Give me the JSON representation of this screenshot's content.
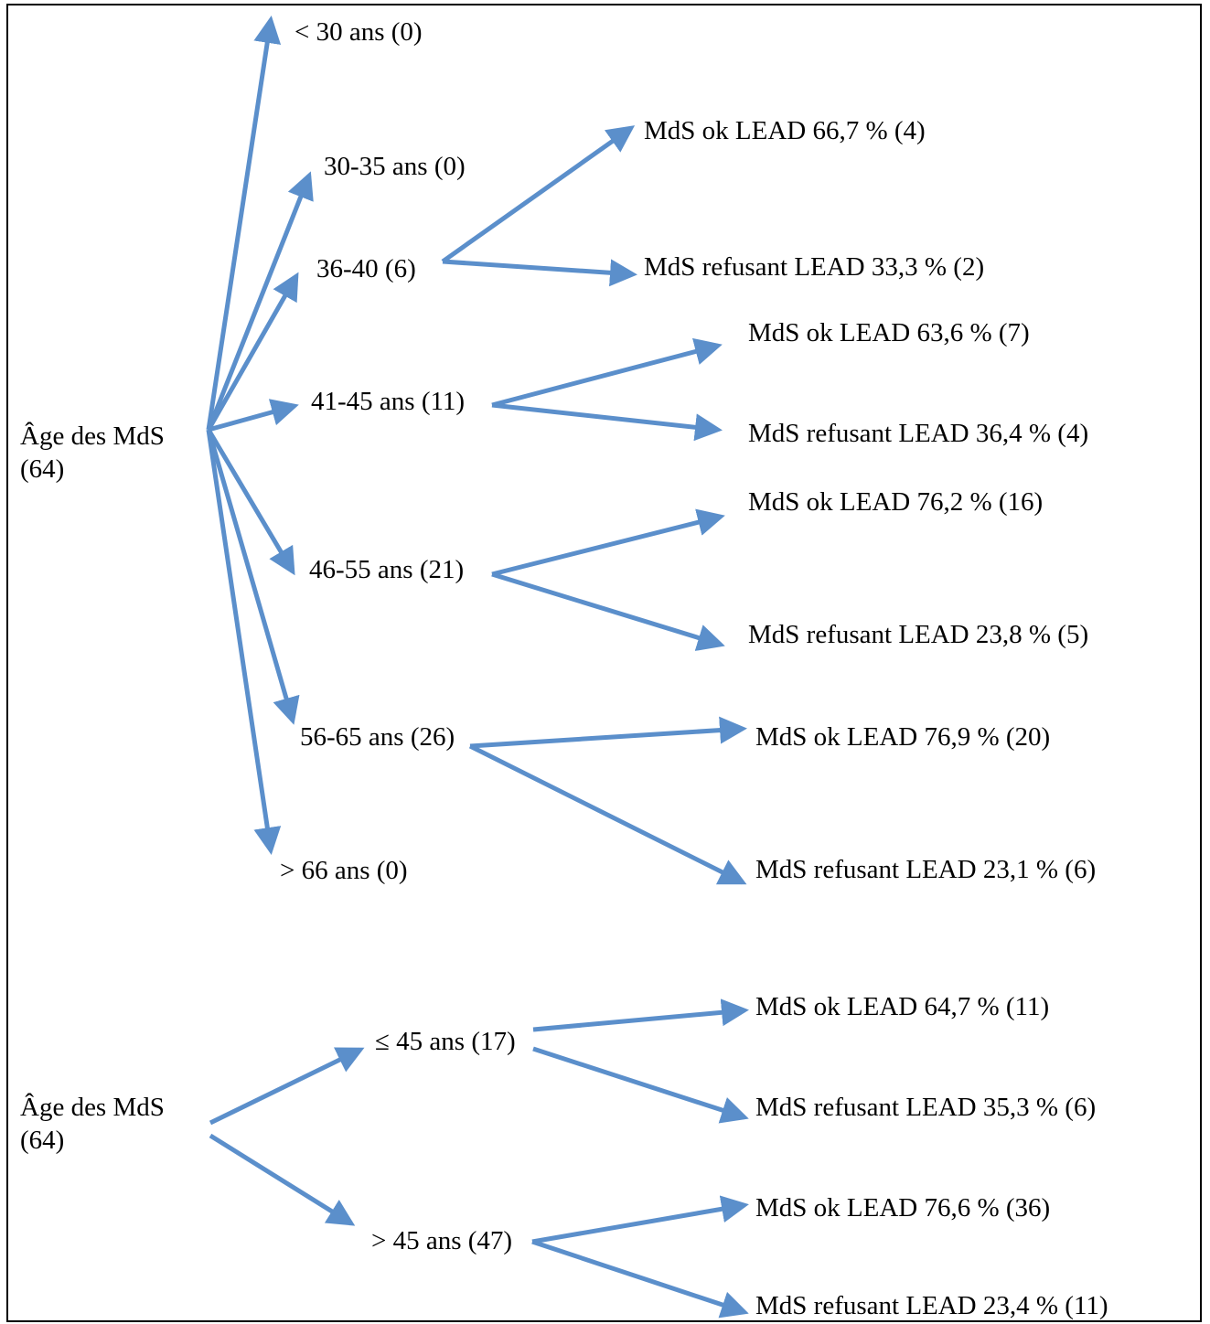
{
  "colors": {
    "arrow": "#5B8FCB",
    "text": "#000000",
    "border": "#000000"
  },
  "diagram1": {
    "root": {
      "line1": "Âge des MdS",
      "line2": "(64)"
    },
    "groups": {
      "lt30": "< 30 ans (0)",
      "a30_35": "30-35 ans (0)",
      "a36_40": "36-40 (6)",
      "a41_45": "41-45 ans (11)",
      "a46_55": "46-55 ans (21)",
      "a56_65": "56-65 ans (26)",
      "gt66": "> 66 ans (0)"
    },
    "outcomes": {
      "a36_40_ok": "MdS ok LEAD 66,7 % (4)",
      "a36_40_ref": "MdS refusant LEAD 33,3 % (2)",
      "a41_45_ok": "MdS ok LEAD 63,6 % (7)",
      "a41_45_ref": "MdS refusant LEAD 36,4 % (4)",
      "a46_55_ok": "MdS ok LEAD 76,2 % (16)",
      "a46_55_ref": "MdS refusant LEAD 23,8 % (5)",
      "a56_65_ok": "MdS ok LEAD 76,9 % (20)",
      "a56_65_ref": "MdS refusant LEAD 23,1 % (6)"
    }
  },
  "diagram2": {
    "root": {
      "line1": "Âge des MdS",
      "line2": "(64)"
    },
    "groups": {
      "le45": "≤ 45 ans (17)",
      "gt45": "> 45 ans (47)"
    },
    "outcomes": {
      "le45_ok": "MdS ok LEAD 64,7 % (11)",
      "le45_ref": "MdS refusant LEAD 35,3 % (6)",
      "gt45_ok": "MdS ok LEAD 76,6 % (36)",
      "gt45_ref": "MdS refusant LEAD 23,4 % (11)"
    }
  }
}
